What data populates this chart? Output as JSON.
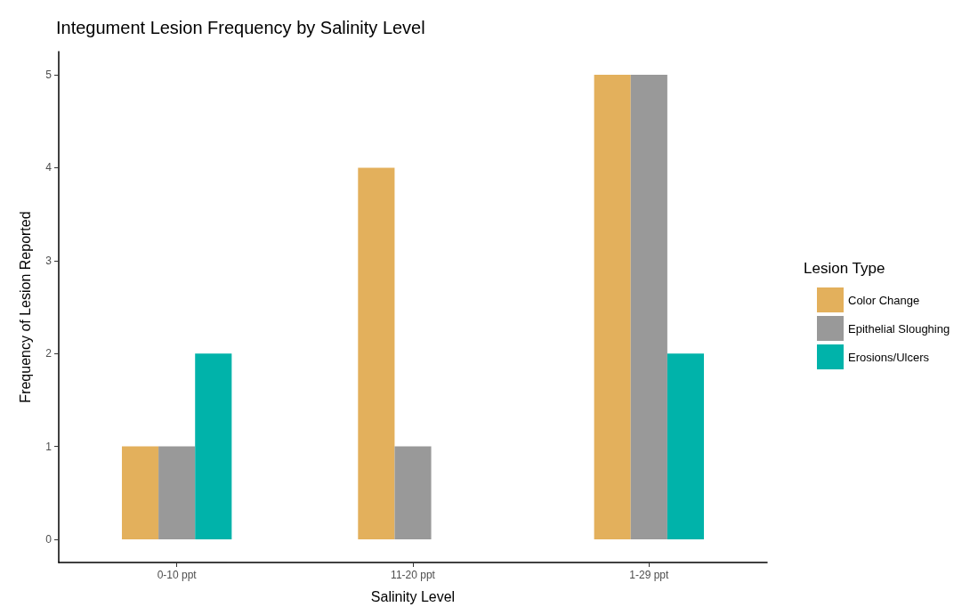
{
  "chart_data": {
    "type": "bar",
    "title": "Integument Lesion Frequency by Salinity Level",
    "xlabel": "Salinity Level",
    "ylabel": "Frequency of Lesion Reported",
    "legend_title": "Lesion Type",
    "categories": [
      "0-10 ppt",
      "11-20 ppt",
      "1-29 ppt"
    ],
    "series": [
      {
        "name": "Color Change",
        "color": "#e3b05c",
        "values": [
          1,
          4,
          5
        ]
      },
      {
        "name": "Epithelial Sloughing",
        "color": "#999999",
        "values": [
          1,
          1,
          5
        ]
      },
      {
        "name": "Erosions/Ulcers",
        "color": "#00b3aa",
        "values": [
          2,
          null,
          2
        ]
      }
    ],
    "ylim": [
      -0.25,
      5.25
    ],
    "yticks": [
      0,
      1,
      2,
      3,
      4,
      5
    ],
    "grid": false,
    "legend": "right"
  }
}
